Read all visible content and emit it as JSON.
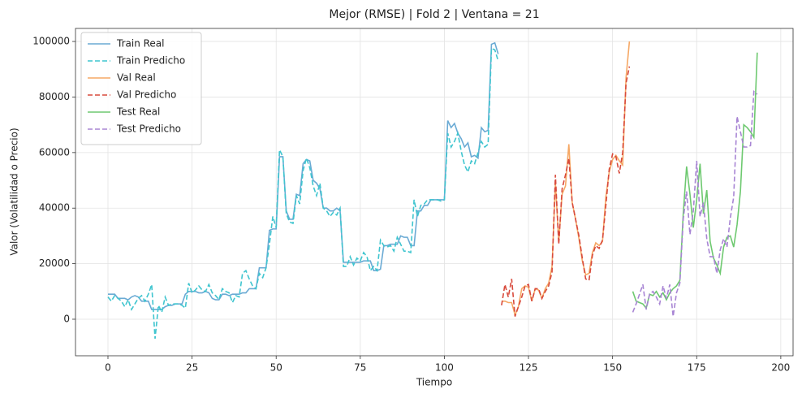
{
  "chart_data": {
    "type": "line",
    "title": "Mejor (RMSE) | Fold 2 | Ventana = 21",
    "xlabel": "Tiempo",
    "ylabel": "Valor (Volatilidad o Precio)",
    "xlim": [
      -9.65,
      203.65
    ],
    "ylim": [
      -13160,
      104700
    ],
    "xticks": [
      0,
      25,
      50,
      75,
      100,
      125,
      150,
      175,
      200
    ],
    "yticks": [
      0,
      20000,
      40000,
      60000,
      80000,
      100000
    ],
    "grid": true,
    "legend": "upper left",
    "series": [
      {
        "name": "Train Real",
        "color": "#6aaad4",
        "dashed": false,
        "x": [
          0,
          1,
          2,
          3,
          4,
          5,
          6,
          7,
          8,
          9,
          10,
          11,
          12,
          13,
          14,
          15,
          16,
          17,
          18,
          19,
          20,
          21,
          22,
          23,
          24,
          25,
          26,
          27,
          28,
          29,
          30,
          31,
          32,
          33,
          34,
          35,
          36,
          37,
          38,
          39,
          40,
          41,
          42,
          43,
          44,
          45,
          46,
          47,
          48,
          49,
          50,
          51,
          52,
          53,
          54,
          55,
          56,
          57,
          58,
          59,
          60,
          61,
          62,
          63,
          64,
          65,
          66,
          67,
          68,
          69,
          70,
          71,
          72,
          73,
          74,
          75,
          76,
          77,
          78,
          79,
          80,
          81,
          82,
          83,
          84,
          85,
          86,
          87,
          88,
          89,
          90,
          91,
          92,
          93,
          94,
          95,
          96,
          97,
          98,
          99,
          100,
          101,
          102,
          103,
          104,
          105,
          106,
          107,
          108,
          109,
          110,
          111,
          112,
          113,
          114,
          115,
          116
        ],
        "values": [
          9000,
          9000,
          9000,
          7500,
          7500,
          7500,
          7000,
          8000,
          8500,
          8000,
          6500,
          6500,
          6500,
          3500,
          3500,
          3500,
          3500,
          4500,
          5000,
          5000,
          5500,
          5500,
          5500,
          9000,
          10000,
          10000,
          10000,
          9500,
          9500,
          10000,
          9500,
          7500,
          7000,
          7000,
          9000,
          9000,
          8500,
          9000,
          9000,
          9000,
          9500,
          9500,
          11000,
          11000,
          11000,
          18500,
          18500,
          18500,
          32000,
          32500,
          32500,
          58500,
          58500,
          39000,
          36000,
          36000,
          45000,
          44500,
          56000,
          57500,
          57000,
          50000,
          49000,
          47000,
          40000,
          40000,
          39000,
          39000,
          40000,
          39000,
          20500,
          20500,
          20500,
          20500,
          20500,
          20500,
          21000,
          21000,
          21000,
          17500,
          17500,
          18000,
          26500,
          26500,
          27000,
          27000,
          27000,
          30000,
          29500,
          29500,
          26500,
          26500,
          39000,
          39000,
          41000,
          41000,
          43000,
          43000,
          43000,
          43000,
          43000,
          71500,
          69000,
          70500,
          67000,
          65000,
          62000,
          63500,
          58500,
          59000,
          58000,
          69000,
          67500,
          68000,
          99000,
          99500,
          95500
        ]
      },
      {
        "name": "Train Predicho",
        "color": "#3fc5cf",
        "dashed": true,
        "x": [
          0,
          1,
          2,
          3,
          4,
          5,
          6,
          7,
          8,
          9,
          10,
          11,
          12,
          13,
          14,
          15,
          16,
          17,
          18,
          19,
          20,
          21,
          22,
          23,
          24,
          25,
          26,
          27,
          28,
          29,
          30,
          31,
          32,
          33,
          34,
          35,
          36,
          37,
          38,
          39,
          40,
          41,
          42,
          43,
          44,
          45,
          46,
          47,
          48,
          49,
          50,
          51,
          52,
          53,
          54,
          55,
          56,
          57,
          58,
          59,
          60,
          61,
          62,
          63,
          64,
          65,
          66,
          67,
          68,
          69,
          70,
          71,
          72,
          73,
          74,
          75,
          76,
          77,
          78,
          79,
          80,
          81,
          82,
          83,
          84,
          85,
          86,
          87,
          88,
          89,
          90,
          91,
          92,
          93,
          94,
          95,
          96,
          97,
          98,
          99,
          100,
          101,
          102,
          103,
          104,
          105,
          106,
          107,
          108,
          109,
          110,
          111,
          112,
          113,
          114,
          115,
          116
        ],
        "values": [
          8000,
          6500,
          8500,
          7500,
          6500,
          4500,
          7000,
          3500,
          5500,
          7500,
          8500,
          6500,
          9000,
          12500,
          -7000,
          5000,
          2500,
          8000,
          5000,
          5500,
          5500,
          5500,
          5000,
          4000,
          13000,
          9500,
          10500,
          12000,
          10500,
          10000,
          12500,
          9500,
          8500,
          7000,
          11000,
          10000,
          9500,
          6000,
          8500,
          8000,
          16500,
          17500,
          14500,
          12000,
          11000,
          16500,
          15000,
          18500,
          27000,
          37000,
          33000,
          61000,
          58500,
          38000,
          35000,
          34500,
          44500,
          41500,
          53500,
          58000,
          54500,
          48000,
          44500,
          49000,
          40000,
          39000,
          37000,
          38500,
          37500,
          40000,
          19000,
          19000,
          22500,
          19500,
          22000,
          21000,
          24000,
          22500,
          17500,
          19000,
          17500,
          28500,
          26500,
          26000,
          26500,
          24500,
          29500,
          27000,
          24500,
          24500,
          24000,
          43000,
          37000,
          41000,
          41500,
          43000,
          43000,
          43000,
          43000,
          42500,
          43000,
          67000,
          62000,
          64000,
          67000,
          60500,
          55500,
          53000,
          57000,
          56000,
          60000,
          64000,
          62000,
          63000,
          97500,
          97000,
          93000
        ]
      },
      {
        "name": "Val Real",
        "color": "#f6a865",
        "dashed": false,
        "x": [
          117,
          118,
          119,
          120,
          121,
          122,
          123,
          124,
          125,
          126,
          127,
          128,
          129,
          130,
          131,
          132,
          133,
          134,
          135,
          136,
          137,
          138,
          139,
          140,
          141,
          142,
          143,
          144,
          145,
          146,
          147,
          148,
          149,
          150,
          151,
          152,
          153,
          154,
          155
        ],
        "values": [
          6500,
          6500,
          6000,
          6000,
          1500,
          4500,
          11000,
          12000,
          11500,
          6500,
          11000,
          10500,
          7500,
          11000,
          13000,
          19000,
          49000,
          28000,
          45000,
          48000,
          63000,
          42000,
          36000,
          29000,
          21000,
          16000,
          16500,
          24000,
          27500,
          26500,
          28000,
          44000,
          53000,
          57500,
          59000,
          57000,
          55500,
          87000,
          100000
        ]
      },
      {
        "name": "Val Predicho",
        "color": "#d84a3c",
        "dashed": true,
        "x": [
          117,
          118,
          119,
          120,
          121,
          122,
          123,
          124,
          125,
          126,
          127,
          128,
          129,
          130,
          131,
          132,
          133,
          134,
          135,
          136,
          137,
          138,
          139,
          140,
          141,
          142,
          143,
          144,
          145,
          146,
          147,
          148,
          149,
          150,
          151,
          152,
          153,
          154,
          155
        ],
        "values": [
          5000,
          12500,
          8000,
          14500,
          1000,
          4500,
          8000,
          12000,
          12500,
          6500,
          11000,
          11000,
          7500,
          10000,
          12000,
          17000,
          52000,
          27000,
          47000,
          52000,
          58000,
          42000,
          36000,
          30000,
          22000,
          14500,
          14000,
          23000,
          26500,
          25500,
          28500,
          41000,
          54000,
          59500,
          58500,
          52500,
          60000,
          85000,
          91000
        ]
      },
      {
        "name": "Test Real",
        "color": "#6ec970",
        "dashed": false,
        "x": [
          156,
          157,
          158,
          159,
          160,
          161,
          162,
          163,
          164,
          165,
          166,
          167,
          168,
          169,
          170,
          171,
          172,
          173,
          174,
          175,
          176,
          177,
          178,
          179,
          180,
          181,
          182,
          183,
          184,
          185,
          186,
          187,
          188,
          189,
          190,
          191,
          192,
          193
        ],
        "values": [
          10000,
          6500,
          6000,
          5500,
          4000,
          9000,
          8500,
          10000,
          8000,
          9500,
          7000,
          9500,
          11000,
          12000,
          14000,
          38000,
          55000,
          45000,
          33000,
          43000,
          56000,
          38000,
          46500,
          28000,
          22000,
          19500,
          16500,
          26000,
          29500,
          30000,
          26000,
          34000,
          46000,
          70000,
          69000,
          67500,
          65500,
          96000
        ]
      },
      {
        "name": "Test Predicho",
        "color": "#a885d4",
        "dashed": true,
        "x": [
          156,
          157,
          158,
          159,
          160,
          161,
          162,
          163,
          164,
          165,
          166,
          167,
          168,
          169,
          170,
          171,
          172,
          173,
          174,
          175,
          176,
          177,
          178,
          179,
          180,
          181,
          182,
          183,
          184,
          185,
          186,
          187,
          188,
          189,
          190,
          191,
          192,
          193
        ],
        "values": [
          2500,
          5500,
          9000,
          12500,
          3500,
          9000,
          10000,
          8000,
          5500,
          12000,
          7500,
          12500,
          1000,
          9500,
          13000,
          36000,
          46000,
          30500,
          39000,
          57000,
          37000,
          42000,
          29000,
          22500,
          22500,
          16500,
          25000,
          29000,
          26000,
          36500,
          44000,
          73000,
          67500,
          62000,
          62000,
          62500,
          82000,
          81000
        ]
      }
    ]
  }
}
